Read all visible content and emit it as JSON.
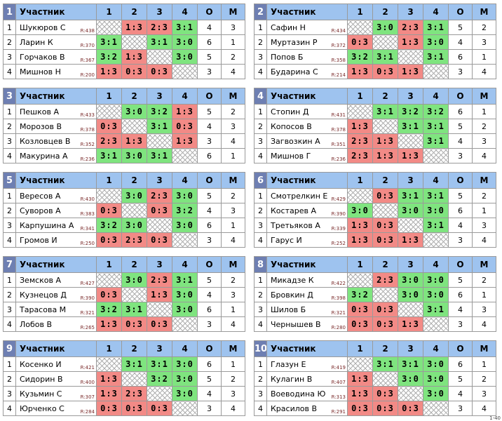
{
  "header": {
    "participant": "Участник",
    "cols": [
      "1",
      "2",
      "3",
      "4"
    ],
    "points": "О",
    "place": "М"
  },
  "rating_prefix": "R:",
  "corner_label": "1-40",
  "groups": [
    {
      "num": "1",
      "players": [
        {
          "idx": "1",
          "name": "Шукюров С",
          "rating": "438",
          "results": [
            "",
            "1:3",
            "2:3",
            "3:1"
          ],
          "points": "4",
          "place": "3"
        },
        {
          "idx": "2",
          "name": "Ларин К",
          "rating": "370",
          "results": [
            "3:1",
            "",
            "3:1",
            "3:0"
          ],
          "points": "6",
          "place": "1"
        },
        {
          "idx": "3",
          "name": "Горчаков В",
          "rating": "367",
          "results": [
            "3:2",
            "1:3",
            "",
            "3:0"
          ],
          "points": "5",
          "place": "2"
        },
        {
          "idx": "4",
          "name": "Мишнов Н",
          "rating": "200",
          "results": [
            "1:3",
            "0:3",
            "0:3",
            ""
          ],
          "points": "3",
          "place": "4"
        }
      ]
    },
    {
      "num": "2",
      "players": [
        {
          "idx": "1",
          "name": "Сафин Н",
          "rating": "434",
          "results": [
            "",
            "3:0",
            "2:3",
            "3:1"
          ],
          "points": "5",
          "place": "2"
        },
        {
          "idx": "2",
          "name": "Муртазин Р",
          "rating": "372",
          "results": [
            "0:3",
            "",
            "1:3",
            "3:0"
          ],
          "points": "4",
          "place": "3"
        },
        {
          "idx": "3",
          "name": "Попов Б",
          "rating": "358",
          "results": [
            "3:2",
            "3:1",
            "",
            "3:1"
          ],
          "points": "6",
          "place": "1"
        },
        {
          "idx": "4",
          "name": "Бударина С",
          "rating": "214",
          "results": [
            "1:3",
            "0:3",
            "1:3",
            ""
          ],
          "points": "3",
          "place": "4"
        }
      ]
    },
    {
      "num": "3",
      "players": [
        {
          "idx": "1",
          "name": "Пешков А",
          "rating": "433",
          "results": [
            "",
            "3:0",
            "3:2",
            "1:3"
          ],
          "points": "5",
          "place": "2"
        },
        {
          "idx": "2",
          "name": "Морозов В",
          "rating": "378",
          "results": [
            "0:3",
            "",
            "3:1",
            "0:3"
          ],
          "points": "4",
          "place": "3"
        },
        {
          "idx": "3",
          "name": "Козловцев В",
          "rating": "352",
          "results": [
            "2:3",
            "1:3",
            "",
            "1:3"
          ],
          "points": "3",
          "place": "4"
        },
        {
          "idx": "4",
          "name": "Макурина А",
          "rating": "236",
          "results": [
            "3:1",
            "3:0",
            "3:1",
            ""
          ],
          "points": "6",
          "place": "1"
        }
      ]
    },
    {
      "num": "4",
      "players": [
        {
          "idx": "1",
          "name": "Стопин Д",
          "rating": "431",
          "results": [
            "",
            "3:1",
            "3:2",
            "3:2"
          ],
          "points": "6",
          "place": "1"
        },
        {
          "idx": "2",
          "name": "Копосов В",
          "rating": "378",
          "results": [
            "1:3",
            "",
            "3:1",
            "3:1"
          ],
          "points": "5",
          "place": "2"
        },
        {
          "idx": "3",
          "name": "Загвозкин А",
          "rating": "351",
          "results": [
            "2:3",
            "1:3",
            "",
            "3:1"
          ],
          "points": "4",
          "place": "3"
        },
        {
          "idx": "4",
          "name": "Мишнов Г",
          "rating": "236",
          "results": [
            "2:3",
            "1:3",
            "1:3",
            ""
          ],
          "points": "3",
          "place": "4"
        }
      ]
    },
    {
      "num": "5",
      "players": [
        {
          "idx": "1",
          "name": "Вересов А",
          "rating": "430",
          "results": [
            "",
            "3:0",
            "2:3",
            "3:0"
          ],
          "points": "5",
          "place": "2"
        },
        {
          "idx": "2",
          "name": "Суворов А",
          "rating": "383",
          "results": [
            "0:3",
            "",
            "0:3",
            "3:2"
          ],
          "points": "4",
          "place": "3"
        },
        {
          "idx": "3",
          "name": "Карпушина А",
          "rating": "341",
          "results": [
            "3:2",
            "3:0",
            "",
            "3:0"
          ],
          "points": "6",
          "place": "1"
        },
        {
          "idx": "4",
          "name": "Громов И",
          "rating": "250",
          "results": [
            "0:3",
            "2:3",
            "0:3",
            ""
          ],
          "points": "3",
          "place": "4"
        }
      ]
    },
    {
      "num": "6",
      "players": [
        {
          "idx": "1",
          "name": "Смотрелкин Е",
          "rating": "429",
          "results": [
            "",
            "0:3",
            "3:1",
            "3:1"
          ],
          "points": "5",
          "place": "2"
        },
        {
          "idx": "2",
          "name": "Костарев А",
          "rating": "390",
          "results": [
            "3:0",
            "",
            "3:0",
            "3:0"
          ],
          "points": "6",
          "place": "1"
        },
        {
          "idx": "3",
          "name": "Третьяков А",
          "rating": "339",
          "results": [
            "1:3",
            "0:3",
            "",
            "3:1"
          ],
          "points": "4",
          "place": "3"
        },
        {
          "idx": "4",
          "name": "Гарус И",
          "rating": "252",
          "results": [
            "1:3",
            "0:3",
            "1:3",
            ""
          ],
          "points": "3",
          "place": "4"
        }
      ]
    },
    {
      "num": "7",
      "players": [
        {
          "idx": "1",
          "name": "Земсков А",
          "rating": "427",
          "results": [
            "",
            "3:0",
            "2:3",
            "3:1"
          ],
          "points": "5",
          "place": "2"
        },
        {
          "idx": "2",
          "name": "Кузнецов Д",
          "rating": "390",
          "results": [
            "0:3",
            "",
            "1:3",
            "3:0"
          ],
          "points": "4",
          "place": "3"
        },
        {
          "idx": "3",
          "name": "Тарасова М",
          "rating": "321",
          "results": [
            "3:2",
            "3:1",
            "",
            "3:0"
          ],
          "points": "6",
          "place": "1"
        },
        {
          "idx": "4",
          "name": "Лобов В",
          "rating": "265",
          "results": [
            "1:3",
            "0:3",
            "0:3",
            ""
          ],
          "points": "3",
          "place": "4"
        }
      ]
    },
    {
      "num": "8",
      "players": [
        {
          "idx": "1",
          "name": "Микадзе К",
          "rating": "422",
          "results": [
            "",
            "2:3",
            "3:0",
            "3:0"
          ],
          "points": "5",
          "place": "2"
        },
        {
          "idx": "2",
          "name": "Бровкин Д",
          "rating": "398",
          "results": [
            "3:2",
            "",
            "3:0",
            "3:0"
          ],
          "points": "6",
          "place": "1"
        },
        {
          "idx": "3",
          "name": "Шилов Б",
          "rating": "321",
          "results": [
            "0:3",
            "0:3",
            "",
            "3:1"
          ],
          "points": "4",
          "place": "3"
        },
        {
          "idx": "4",
          "name": "Чернышев В",
          "rating": "280",
          "results": [
            "0:3",
            "0:3",
            "1:3",
            ""
          ],
          "points": "3",
          "place": "4"
        }
      ]
    },
    {
      "num": "9",
      "players": [
        {
          "idx": "1",
          "name": "Косенко И",
          "rating": "421",
          "results": [
            "",
            "3:1",
            "3:1",
            "3:0"
          ],
          "points": "6",
          "place": "1"
        },
        {
          "idx": "2",
          "name": "Сидорин В",
          "rating": "400",
          "results": [
            "1:3",
            "",
            "3:2",
            "3:0"
          ],
          "points": "5",
          "place": "2"
        },
        {
          "idx": "3",
          "name": "Кузьмин С",
          "rating": "307",
          "results": [
            "1:3",
            "2:3",
            "",
            "3:0"
          ],
          "points": "4",
          "place": "3"
        },
        {
          "idx": "4",
          "name": "Юрченко С",
          "rating": "284",
          "results": [
            "0:3",
            "0:3",
            "0:3",
            ""
          ],
          "points": "3",
          "place": "4"
        }
      ]
    },
    {
      "num": "10",
      "players": [
        {
          "idx": "1",
          "name": "Глазун Е",
          "rating": "419",
          "results": [
            "",
            "3:1",
            "3:1",
            "3:0"
          ],
          "points": "6",
          "place": "1"
        },
        {
          "idx": "2",
          "name": "Кулагин В",
          "rating": "407",
          "results": [
            "1:3",
            "",
            "3:0",
            "3:0"
          ],
          "points": "5",
          "place": "2"
        },
        {
          "idx": "3",
          "name": "Воеводина Ю",
          "rating": "313",
          "results": [
            "1:3",
            "0:3",
            "",
            "3:0"
          ],
          "points": "4",
          "place": "3"
        },
        {
          "idx": "4",
          "name": "Красилов В",
          "rating": "291",
          "results": [
            "0:3",
            "0:3",
            "0:3",
            ""
          ],
          "points": "3",
          "place": "4"
        }
      ]
    }
  ]
}
